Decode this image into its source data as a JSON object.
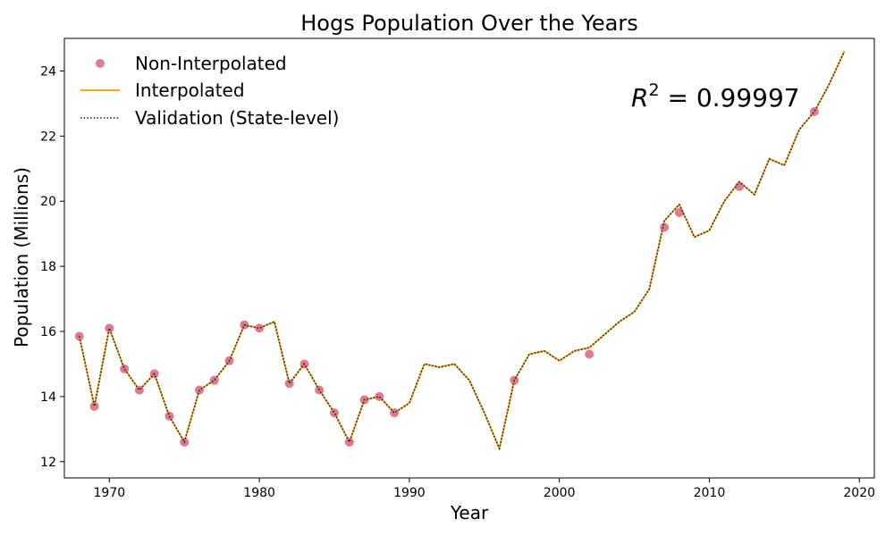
{
  "chart_data": {
    "type": "line",
    "title": "Hogs Population Over the Years",
    "xlabel": "Year",
    "ylabel": "Population (Millions)",
    "xlim": [
      1967,
      2021
    ],
    "ylim": [
      11.5,
      25.0
    ],
    "xticks": [
      1970,
      1980,
      1990,
      2000,
      2010,
      2020
    ],
    "yticks": [
      12,
      14,
      16,
      18,
      20,
      22,
      24
    ],
    "grid": false,
    "legend_position": "top-left",
    "annotation": {
      "prefix": "R",
      "exponent": "2",
      "suffix": " = 0.99997"
    },
    "colors": {
      "non_interpolated": "#db6e7f",
      "interpolated": "#f5a623",
      "validation": "#1a1a1a"
    },
    "legend": [
      {
        "label": "Non-Interpolated",
        "style": "marker"
      },
      {
        "label": "Interpolated",
        "style": "line"
      },
      {
        "label": "Validation (State-level)",
        "style": "dotted"
      }
    ],
    "series": [
      {
        "name": "Non-Interpolated",
        "style": "marker",
        "x": [
          1968,
          1969,
          1970,
          1971,
          1972,
          1973,
          1974,
          1975,
          1976,
          1977,
          1978,
          1979,
          1980,
          1982,
          1983,
          1984,
          1985,
          1986,
          1987,
          1988,
          1989,
          1997,
          2002,
          2007,
          2008,
          2012,
          2017
        ],
        "y": [
          15.85,
          13.7,
          16.1,
          14.85,
          14.2,
          14.7,
          13.4,
          12.6,
          14.2,
          14.5,
          15.1,
          16.2,
          16.1,
          14.4,
          15.0,
          14.2,
          13.5,
          12.6,
          13.9,
          14.0,
          13.5,
          14.5,
          15.3,
          19.2,
          19.65,
          20.45,
          22.75
        ]
      },
      {
        "name": "Interpolated",
        "style": "line",
        "x": [
          1968,
          1969,
          1970,
          1971,
          1972,
          1973,
          1974,
          1975,
          1976,
          1977,
          1978,
          1979,
          1980,
          1981,
          1982,
          1983,
          1984,
          1985,
          1986,
          1987,
          1988,
          1989,
          1990,
          1991,
          1992,
          1993,
          1994,
          1995,
          1996,
          1997,
          1998,
          1999,
          2000,
          2001,
          2002,
          2003,
          2004,
          2005,
          2006,
          2007,
          2008,
          2009,
          2010,
          2011,
          2012,
          2013,
          2014,
          2015,
          2016,
          2017,
          2018,
          2019
        ],
        "y": [
          15.85,
          13.7,
          16.1,
          14.85,
          14.2,
          14.7,
          13.4,
          12.6,
          14.2,
          14.5,
          15.1,
          16.2,
          16.1,
          16.3,
          14.4,
          15.0,
          14.2,
          13.5,
          12.6,
          13.9,
          14.0,
          13.5,
          13.8,
          15.0,
          14.9,
          15.0,
          14.5,
          13.5,
          12.4,
          14.5,
          15.3,
          15.4,
          15.1,
          15.4,
          15.5,
          15.9,
          16.3,
          16.6,
          17.3,
          19.4,
          19.9,
          18.9,
          19.1,
          20.0,
          20.6,
          20.2,
          21.3,
          21.1,
          22.2,
          22.75,
          23.6,
          24.6
        ]
      },
      {
        "name": "Validation (State-level)",
        "style": "dotted",
        "x": [
          1968,
          1969,
          1970,
          1971,
          1972,
          1973,
          1974,
          1975,
          1976,
          1977,
          1978,
          1979,
          1980,
          1981,
          1982,
          1983,
          1984,
          1985,
          1986,
          1987,
          1988,
          1989,
          1990,
          1991,
          1992,
          1993,
          1994,
          1995,
          1996,
          1997,
          1998,
          1999,
          2000,
          2001,
          2002,
          2003,
          2004,
          2005,
          2006,
          2007,
          2008,
          2009,
          2010,
          2011,
          2012,
          2013,
          2014,
          2015,
          2016,
          2017,
          2018,
          2019
        ],
        "y": [
          15.85,
          13.7,
          16.1,
          14.85,
          14.2,
          14.7,
          13.4,
          12.6,
          14.2,
          14.5,
          15.1,
          16.2,
          16.1,
          16.3,
          14.4,
          15.0,
          14.2,
          13.5,
          12.6,
          13.9,
          14.0,
          13.5,
          13.8,
          15.0,
          14.9,
          15.0,
          14.5,
          13.5,
          12.4,
          14.5,
          15.3,
          15.4,
          15.1,
          15.4,
          15.5,
          15.9,
          16.3,
          16.6,
          17.3,
          19.4,
          19.9,
          18.9,
          19.1,
          20.0,
          20.6,
          20.2,
          21.3,
          21.1,
          22.2,
          22.75,
          23.6,
          24.6
        ]
      }
    ]
  }
}
